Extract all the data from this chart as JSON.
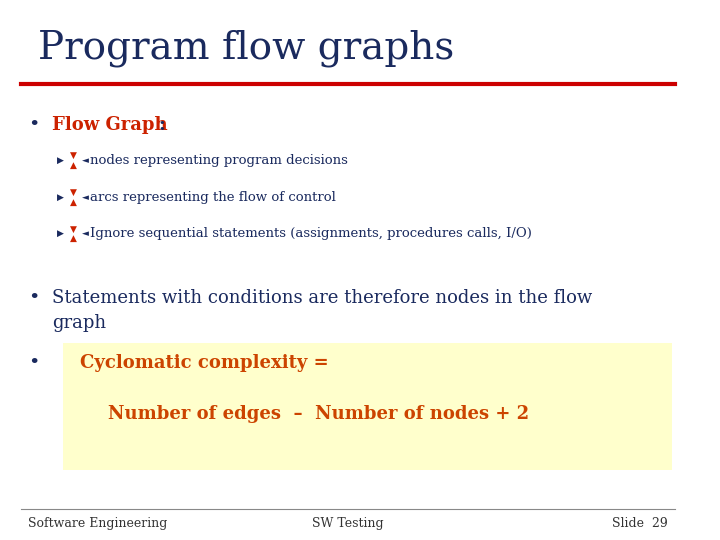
{
  "title": "Program flow graphs",
  "title_color": "#1a2a5e",
  "title_fontsize": 28,
  "red_line_color": "#cc0000",
  "background_color": "#ffffff",
  "bullet1_label": "Flow Graph",
  "bullet1_label_color": "#cc2200",
  "bullet1_colon": ":",
  "bullet1_colon_color": "#1a2a5e",
  "sub_bullets": [
    "nodes representing program decisions",
    "arcs representing the flow of control",
    "Ignore sequential statements (assignments, procedures calls, I/O)"
  ],
  "sub_bullet_color": "#1a2a5e",
  "bullet2_text": "Statements with conditions are therefore nodes in the flow\ngraph",
  "bullet2_color": "#1a2a5e",
  "highlight_box_color": "#ffffcc",
  "bullet3_label": "Cyclomatic complexity =",
  "bullet3_label_color": "#cc4400",
  "bullet3_sub": "Number of edges  –  Number of nodes + 2",
  "bullet3_sub_color": "#cc4400",
  "footer_left": "Software Engineering",
  "footer_center": "SW Testing",
  "footer_right": "Slide  29",
  "footer_color": "#333333",
  "footer_fontsize": 9,
  "icon_red": "#cc2200",
  "icon_blue": "#1a2a5e"
}
